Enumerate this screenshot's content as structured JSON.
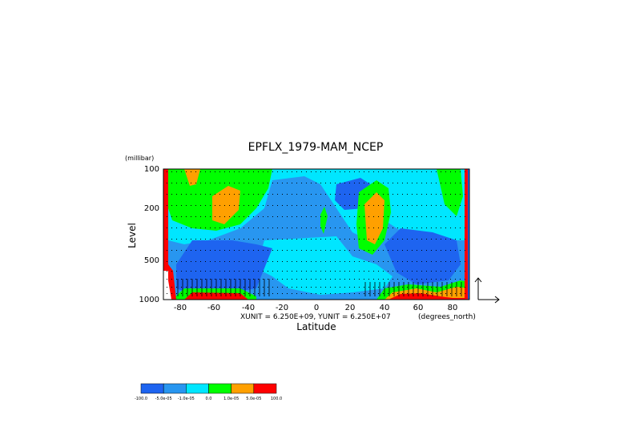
{
  "chart_data": {
    "type": "heatmap",
    "title": "EPFLX_1979-MAM_NCEP",
    "y_unit_label": "(millibar)",
    "ylabel": "Level",
    "xlabel": "Latitude",
    "x_unit_label": "(degrees_north)",
    "vector_scale_note": "XUNIT = 6.250E+09, YUNIT = 6.250E+07",
    "x_ticks": [
      "-80",
      "-60",
      "-40",
      "-20",
      "0",
      "20",
      "40",
      "60",
      "80"
    ],
    "x_tick_values": [
      -80,
      -60,
      -40,
      -20,
      0,
      20,
      40,
      60,
      80
    ],
    "y_ticks": [
      "100",
      "200",
      "500",
      "1000"
    ],
    "y_tick_values": [
      100,
      200,
      500,
      1000
    ],
    "xlim": [
      -90,
      90
    ],
    "ylim": [
      1000,
      100
    ],
    "y_scale": "log",
    "colorbar": {
      "labels": [
        "-100.0",
        "-5.0e-05",
        "-1.0e-05",
        "0.0",
        "1.0e-05",
        "5.0e-05",
        "100.0"
      ],
      "colors": [
        "#1e64f0",
        "#2896f0",
        "#00e6ff",
        "#00ff00",
        "#ffa000",
        "#ff0000"
      ]
    },
    "regions": [
      {
        "name": "bg",
        "color": "#2896f0"
      },
      {
        "name": "cyan-mid",
        "color": "#00e6ff"
      },
      {
        "name": "blue-south-low",
        "color": "#1e64f0"
      },
      {
        "name": "blue-north-low",
        "color": "#1e64f0"
      },
      {
        "name": "green-south",
        "color": "#00ff00"
      },
      {
        "name": "orange-south",
        "color": "#ffa000"
      },
      {
        "name": "green-north",
        "color": "#00ff00"
      },
      {
        "name": "orange-north",
        "color": "#ffa000"
      },
      {
        "name": "red-north-surface",
        "color": "#ff0000"
      }
    ]
  }
}
